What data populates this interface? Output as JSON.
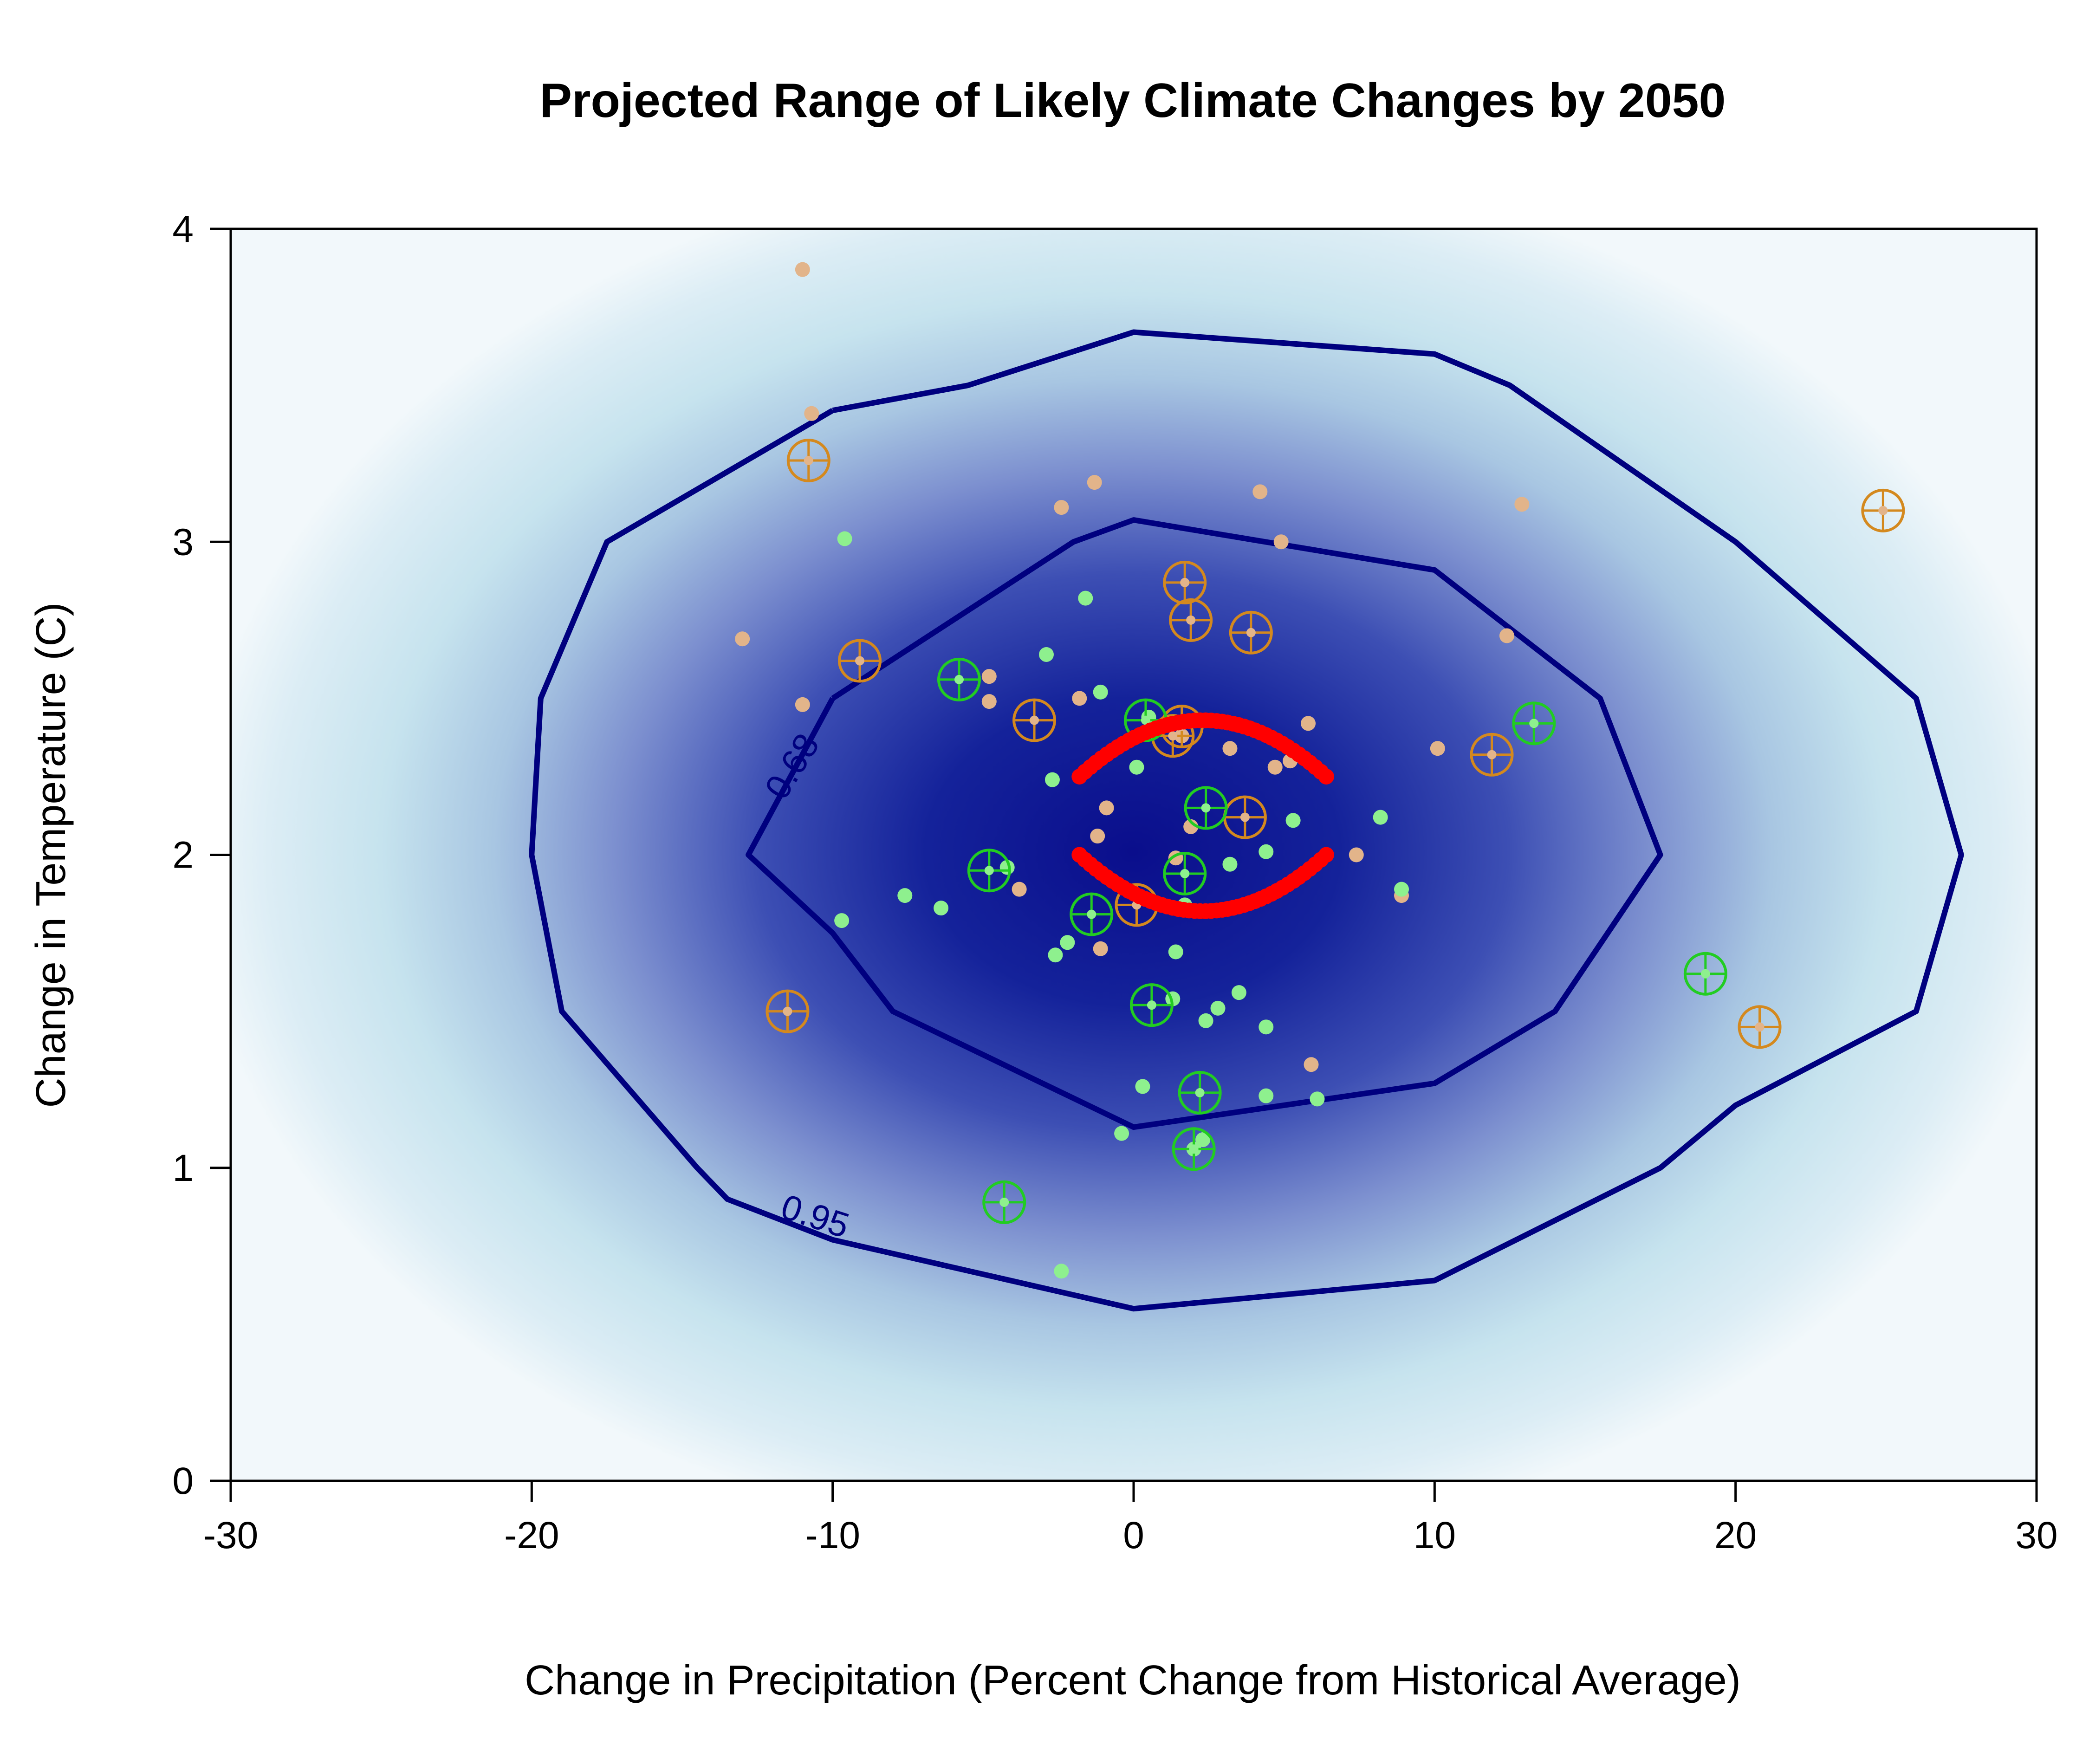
{
  "chart_data": {
    "type": "scatter",
    "title": "Projected Range of Likely Climate Changes by 2050",
    "xlabel": "Change in Precipitation (Percent Change from Historical Average)",
    "ylabel": "Change in Temperature (C)",
    "xlim": [
      -30,
      30
    ],
    "ylim": [
      0,
      4
    ],
    "xticks": [
      -30,
      -20,
      -10,
      0,
      10,
      20,
      30
    ],
    "xtick_labels": [
      "-30",
      "-20",
      "-10",
      "0",
      "10",
      "20",
      "30"
    ],
    "yticks": [
      0,
      1,
      2,
      3,
      4
    ],
    "ytick_labels": [
      "0",
      "1",
      "2",
      "3",
      "4"
    ],
    "grid": false,
    "legend": "none",
    "background_density": {
      "center": [
        0,
        2
      ],
      "description": "bivariate density shading, light blue to dark navy"
    },
    "colors": {
      "density_low": "#eef6fa",
      "density_mid": "#bfe0ea",
      "density_high": "#0b0f8f",
      "contour": "#00007f",
      "tan_points": "#e2b48a",
      "orange_markers": "#d4891e",
      "light_green_points": "#8ef08e",
      "green_markers": "#22cc22",
      "red_markers": "#ff0000"
    },
    "contours": [
      {
        "level": 0.95,
        "label": "0.95",
        "points": [
          [
            -10,
            3.42
          ],
          [
            -5.5,
            3.5
          ],
          [
            0,
            3.67
          ],
          [
            10,
            3.6
          ],
          [
            12.5,
            3.5
          ],
          [
            20,
            3.0
          ],
          [
            26,
            2.5
          ],
          [
            27.5,
            2.0
          ],
          [
            26,
            1.5
          ],
          [
            20,
            1.2
          ],
          [
            17.5,
            1.0
          ],
          [
            10,
            0.64
          ],
          [
            0,
            0.55
          ],
          [
            -10,
            0.77
          ],
          [
            -13.5,
            0.9
          ],
          [
            -14.5,
            1.0
          ],
          [
            -19,
            1.5
          ],
          [
            -20,
            2.0
          ],
          [
            -19.7,
            2.5
          ],
          [
            -17.5,
            3.0
          ],
          [
            -10,
            3.42
          ]
        ]
      },
      {
        "level": 0.68,
        "label": "0.68",
        "points": [
          [
            -10,
            2.5
          ],
          [
            -2,
            3.0
          ],
          [
            0,
            3.07
          ],
          [
            10,
            2.91
          ],
          [
            15.5,
            2.5
          ],
          [
            17.5,
            2.0
          ],
          [
            14,
            1.5
          ],
          [
            10,
            1.27
          ],
          [
            0,
            1.13
          ],
          [
            -8,
            1.5
          ],
          [
            -10,
            1.75
          ],
          [
            -12.8,
            2.0
          ],
          [
            -10,
            2.5
          ]
        ]
      }
    ],
    "series": [
      {
        "marker": "dot",
        "color": "tan",
        "points": [
          [
            -11,
            3.87
          ],
          [
            -10.7,
            3.41
          ],
          [
            -1.3,
            3.19
          ],
          [
            -2.4,
            3.11
          ],
          [
            4.2,
            3.16
          ],
          [
            4.9,
            3.0
          ],
          [
            12.9,
            3.12
          ],
          [
            -13,
            2.69
          ],
          [
            12.4,
            2.7
          ],
          [
            -11,
            2.48
          ],
          [
            -4.8,
            2.57
          ],
          [
            -4.8,
            2.49
          ],
          [
            -1.8,
            2.5
          ],
          [
            5.8,
            2.42
          ],
          [
            1.6,
            2.38
          ],
          [
            3.2,
            2.34
          ],
          [
            10.1,
            2.34
          ],
          [
            4.7,
            2.28
          ],
          [
            5.2,
            2.3
          ],
          [
            -0.9,
            2.15
          ],
          [
            1.9,
            2.09
          ],
          [
            -1.2,
            2.06
          ],
          [
            7.4,
            2.0
          ],
          [
            1.4,
            1.99
          ],
          [
            8.9,
            1.87
          ],
          [
            -3.8,
            1.89
          ],
          [
            -1.1,
            1.7
          ],
          [
            5.9,
            1.33
          ]
        ]
      },
      {
        "marker": "circle-plus",
        "color": "orange",
        "points": [
          [
            -10.8,
            3.26
          ],
          [
            24.9,
            3.1
          ],
          [
            1.7,
            2.87
          ],
          [
            1.9,
            2.75
          ],
          [
            3.9,
            2.71
          ],
          [
            -9.1,
            2.62
          ],
          [
            -3.3,
            2.43
          ],
          [
            1.6,
            2.41
          ],
          [
            1.3,
            2.38
          ],
          [
            11.9,
            2.32
          ],
          [
            3.7,
            2.12
          ],
          [
            0.1,
            1.84
          ],
          [
            -11.5,
            1.5
          ],
          [
            20.8,
            1.45
          ]
        ]
      },
      {
        "marker": "dot",
        "color": "light-green",
        "points": [
          [
            -9.6,
            3.01
          ],
          [
            -1.6,
            2.82
          ],
          [
            -2.9,
            2.64
          ],
          [
            -1.1,
            2.52
          ],
          [
            0.5,
            2.44
          ],
          [
            0.1,
            2.28
          ],
          [
            -2.7,
            2.24
          ],
          [
            5.3,
            2.11
          ],
          [
            8.2,
            2.12
          ],
          [
            4.4,
            2.01
          ],
          [
            3.2,
            1.97
          ],
          [
            -4.2,
            1.96
          ],
          [
            8.9,
            1.89
          ],
          [
            -7.6,
            1.87
          ],
          [
            -6.4,
            1.83
          ],
          [
            1.7,
            1.84
          ],
          [
            -9.7,
            1.79
          ],
          [
            -2.2,
            1.72
          ],
          [
            1.4,
            1.69
          ],
          [
            -2.6,
            1.68
          ],
          [
            1.3,
            1.54
          ],
          [
            3.5,
            1.56
          ],
          [
            2.8,
            1.51
          ],
          [
            2.4,
            1.47
          ],
          [
            4.4,
            1.45
          ],
          [
            0.3,
            1.26
          ],
          [
            4.4,
            1.23
          ],
          [
            6.1,
            1.22
          ],
          [
            -0.4,
            1.11
          ],
          [
            2.3,
            1.09
          ],
          [
            2.0,
            1.06
          ],
          [
            -2.4,
            0.67
          ]
        ]
      },
      {
        "marker": "circle-plus",
        "color": "green",
        "points": [
          [
            -5.8,
            2.56
          ],
          [
            0.4,
            2.43
          ],
          [
            13.3,
            2.42
          ],
          [
            2.4,
            2.15
          ],
          [
            -4.8,
            1.95
          ],
          [
            1.7,
            1.94
          ],
          [
            -1.4,
            1.81
          ],
          [
            0.6,
            1.52
          ],
          [
            19.0,
            1.62
          ],
          [
            2.2,
            1.24
          ],
          [
            2.0,
            1.06
          ],
          [
            -4.3,
            0.89
          ]
        ]
      },
      {
        "marker": "arc",
        "color": "red",
        "arcs": [
          {
            "x_range": [
              -1.8,
              6.4
            ],
            "y_end": 2.25,
            "y_peak": 2.43
          },
          {
            "x_range": [
              -1.8,
              6.4
            ],
            "y_end": 2.0,
            "y_peak": 1.82
          }
        ]
      }
    ]
  }
}
